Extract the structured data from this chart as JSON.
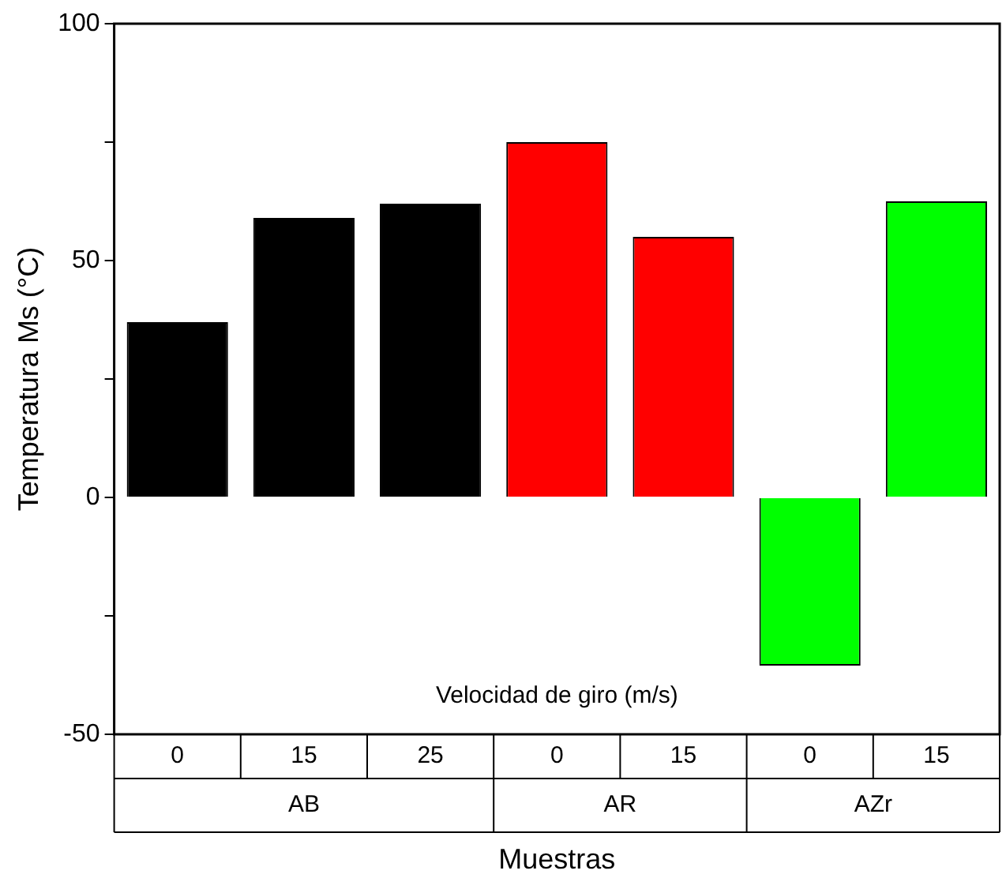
{
  "chart_data": {
    "type": "bar",
    "xlabel": "Muestras",
    "ylabel": "Temperatura Ms (°C)",
    "annotations": [
      "Velocidad de giro (m/s)",
      "AB",
      "AR",
      "AZr"
    ],
    "categories": [
      "0",
      "15",
      "25",
      "0",
      "15",
      "0",
      "15"
    ],
    "values": [
      37,
      59,
      62,
      75,
      55,
      -35.5,
      62.5
    ],
    "colors": [
      "#000000",
      "#000000",
      "#000000",
      "#ff0000",
      "#ff0000",
      "#00ff00",
      "#00ff00"
    ],
    "ylim": [
      -50,
      100
    ],
    "yticks": [
      -50,
      {
        "value": -25,
        "label": null
      },
      0,
      {
        "value": 25,
        "label": null
      },
      50,
      {
        "value": 75,
        "label": null
      },
      100
    ],
    "grid": false
  }
}
